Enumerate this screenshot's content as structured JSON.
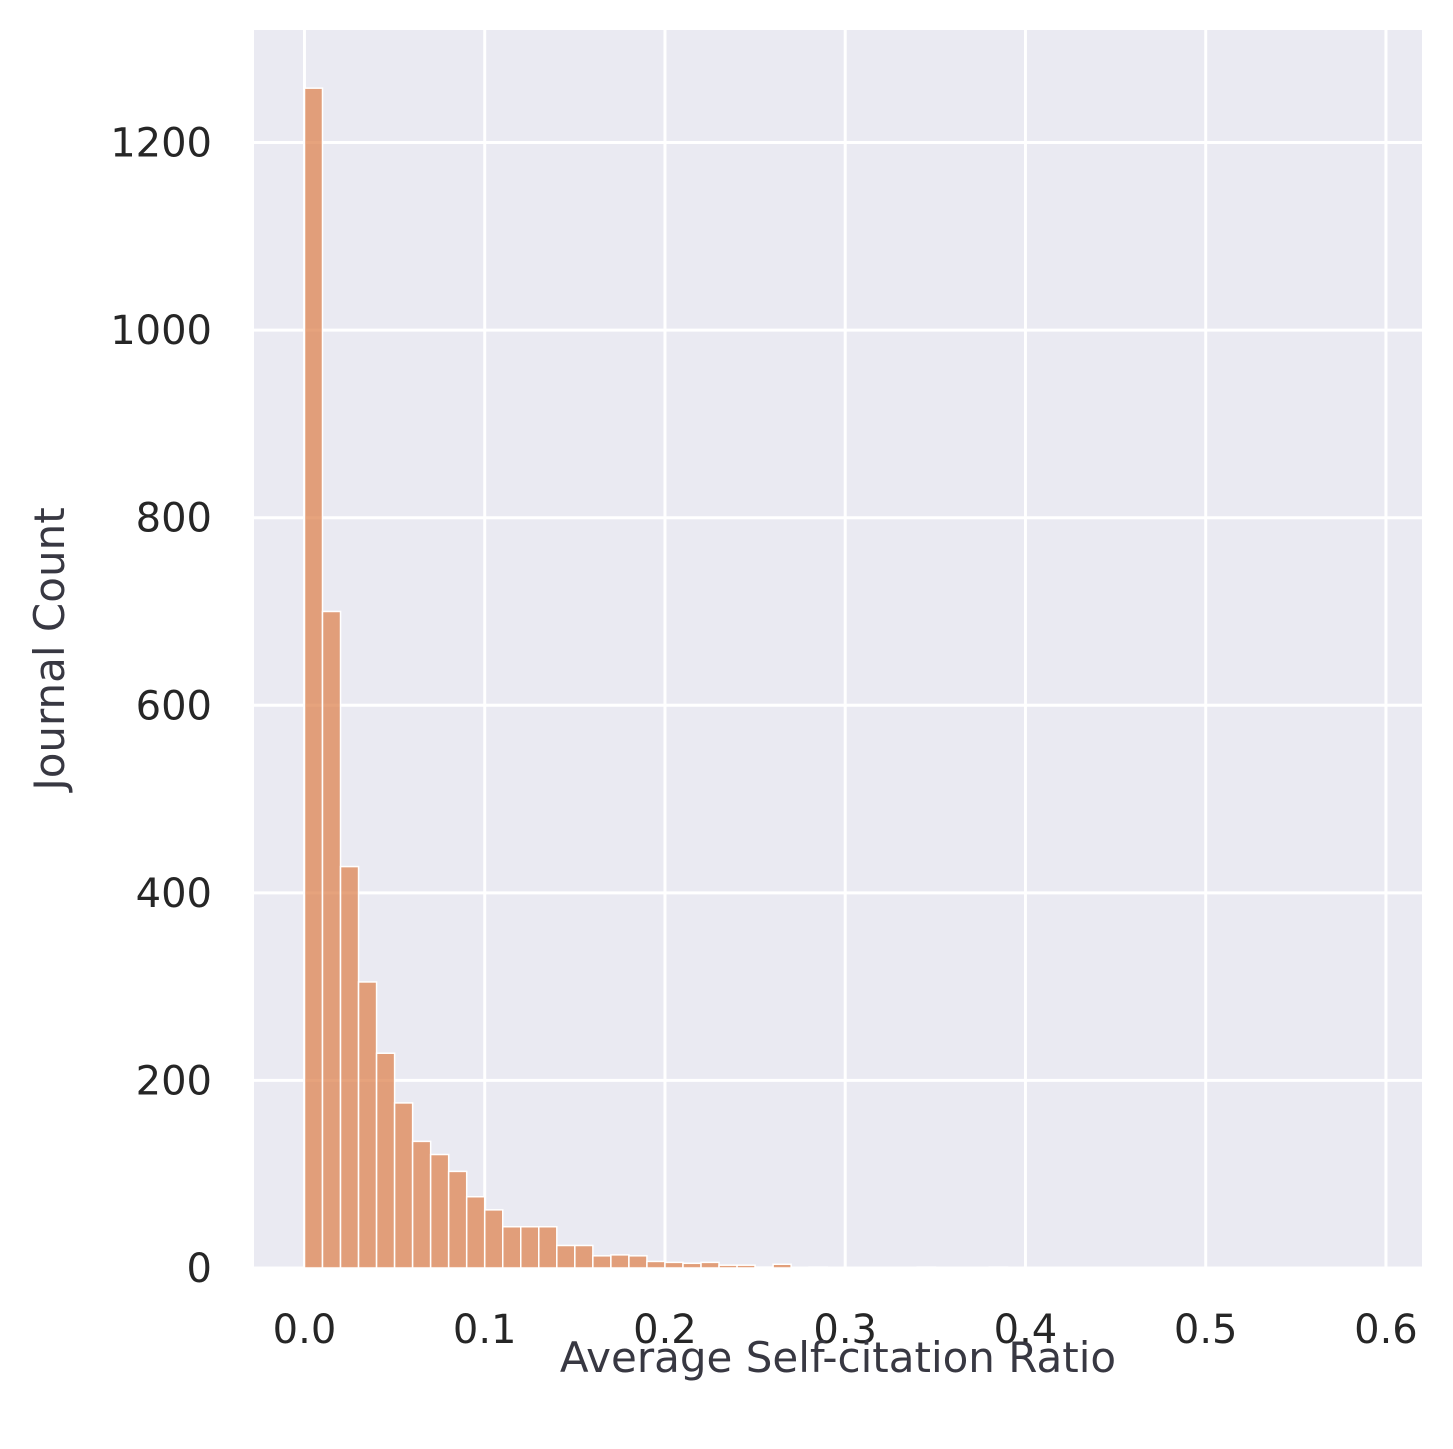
{
  "chart_data": {
    "type": "bar",
    "subtype": "histogram",
    "title": "",
    "xlabel": "Average Self-citation Ratio",
    "ylabel": "Journal Count",
    "xlim": [
      -0.028,
      0.62
    ],
    "ylim": [
      0,
      1320
    ],
    "xticks": [
      0.0,
      0.1,
      0.2,
      0.3,
      0.4,
      0.5,
      0.6
    ],
    "xtick_labels": [
      "0.0",
      "0.1",
      "0.2",
      "0.3",
      "0.4",
      "0.5",
      "0.6"
    ],
    "yticks": [
      0,
      200,
      400,
      600,
      800,
      1000,
      1200
    ],
    "ytick_labels": [
      "0",
      "200",
      "400",
      "600",
      "800",
      "1000",
      "1200"
    ],
    "grid": true,
    "legend": "none",
    "bin_start": 0.0,
    "bin_width": 0.01,
    "values": [
      1258,
      700,
      428,
      305,
      229,
      176,
      135,
      121,
      103,
      76,
      62,
      44,
      44,
      44,
      24,
      24,
      13,
      14,
      13,
      7,
      6,
      5,
      6,
      3,
      3,
      1,
      4,
      0,
      1,
      0,
      0,
      0,
      0,
      0,
      1,
      0,
      0,
      0,
      1
    ],
    "colors": {
      "bar": "#dd8452",
      "plot_background": "#eaeaf2",
      "grid": "#ffffff"
    }
  }
}
